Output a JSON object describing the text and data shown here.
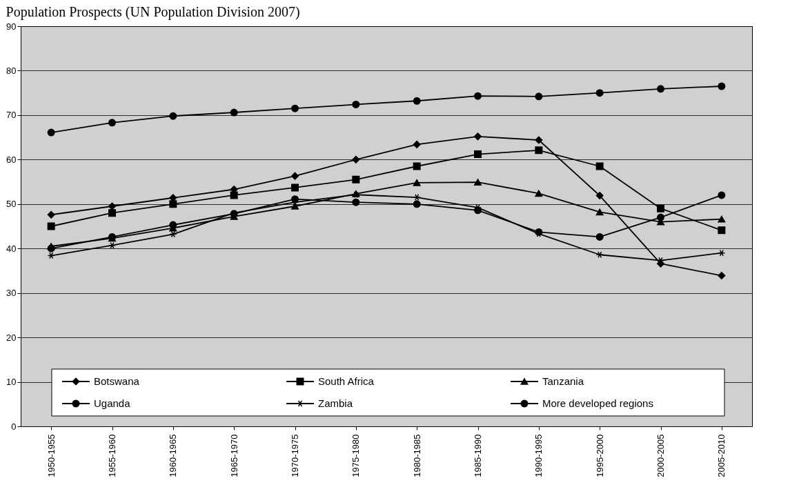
{
  "chart_data": {
    "type": "line",
    "title": "Population Prospects (UN Population Division 2007)",
    "categories": [
      "1950-1955",
      "1955-1960",
      "1960-1965",
      "1965-1970",
      "1970-1975",
      "1975-1980",
      "1980-1985",
      "1985-1990",
      "1990-1995",
      "1995-2000",
      "2000-2005",
      "2005-2010"
    ],
    "series": [
      {
        "name": "Botswana",
        "color": "#000000",
        "marker": "diamond",
        "values": [
          47.6,
          49.5,
          51.4,
          53.3,
          56.3,
          60.0,
          63.4,
          65.2,
          64.4,
          51.9,
          36.6,
          33.9
        ]
      },
      {
        "name": "South Africa",
        "color": "#000000",
        "marker": "square",
        "values": [
          45.0,
          48.0,
          50.0,
          52.0,
          53.7,
          55.5,
          58.5,
          61.2,
          62.1,
          58.5,
          49.0,
          44.1
        ]
      },
      {
        "name": "Tanzania",
        "color": "#000000",
        "marker": "triangle",
        "values": [
          40.5,
          42.3,
          44.6,
          47.2,
          49.5,
          52.3,
          54.8,
          54.9,
          52.4,
          48.2,
          46.0,
          46.6
        ]
      },
      {
        "name": "Uganda",
        "color": "#000000",
        "marker": "circle",
        "values": [
          40.0,
          42.6,
          45.3,
          47.8,
          51.1,
          50.4,
          50.0,
          48.6,
          43.7,
          42.6,
          47.0,
          52.0
        ]
      },
      {
        "name": "Zambia",
        "color": "#000000",
        "marker": "cross",
        "values": [
          38.4,
          40.7,
          43.2,
          48.0,
          50.4,
          52.1,
          51.5,
          49.2,
          43.3,
          38.6,
          37.3,
          39.0
        ]
      },
      {
        "name": "More developed regions",
        "color": "#000000",
        "marker": "circle",
        "values": [
          66.1,
          68.3,
          69.8,
          70.6,
          71.5,
          72.4,
          73.2,
          74.3,
          74.2,
          75.0,
          75.9,
          76.5
        ]
      }
    ],
    "ylim": [
      0,
      90
    ],
    "yticks": [
      0,
      10,
      20,
      30,
      40,
      50,
      60,
      70,
      80,
      90
    ],
    "grid": "y",
    "legend": "bottom",
    "line_style": "solid"
  }
}
